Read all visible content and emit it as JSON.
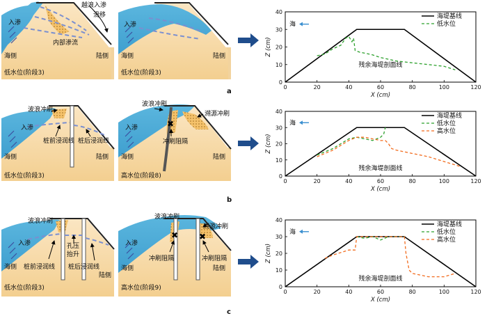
{
  "rows": [
    {
      "id": "a",
      "row_label": "a",
      "left_panel": {
        "overtop_label": "越浪入渗",
        "slide_label": "滑移",
        "infiltration_label": "入渗",
        "internal_seepage_label": "内部渗流",
        "sea_side_label": "海侧",
        "land_side_label": "陆侧",
        "stage_label": "低水位(阶段3)"
      },
      "right_panel": {
        "infiltration_label": "入渗",
        "sea_side_label": "海侧",
        "land_side_label": "陆侧",
        "stage_label": "低水位(阶段3)"
      }
    },
    {
      "id": "b",
      "row_label": "b",
      "left_panel": {
        "wave_scour_label": "波浪冲刷",
        "infiltration_label": "入渗",
        "front_line_label": "桩前浸润线",
        "back_line_label": "桩后浸润线",
        "sea_side_label": "海侧",
        "land_side_label": "陆侧",
        "stage_label": "低水位(阶段3)"
      },
      "right_panel": {
        "wave_scour_label": "波浪冲刷",
        "retro_scour_label": "溯源冲刷",
        "infiltration_label": "入渗",
        "scour_barrier_label": "冲刷阻隔",
        "sea_side_label": "海侧",
        "land_side_label": "陆侧",
        "stage_label": "高水位(阶段8)"
      }
    },
    {
      "id": "c",
      "row_label": "c",
      "left_panel": {
        "wave_scour_label": "波浪冲刷",
        "infiltration_label": "入渗",
        "pore_pressure_label_1": "孔压",
        "pore_pressure_label_2": "抬升",
        "front_line_label": "桩前浸润线",
        "back_line_label": "桩后浸润线",
        "sea_side_label": "海侧",
        "land_side_label": "陆侧",
        "stage_label": "低水位(阶段3)"
      },
      "right_panel": {
        "wave_scour_label": "波浪冲刷",
        "retro_scour_label": "溯源冲刷",
        "infiltration_label": "入渗",
        "scour_barrier_label_1": "冲刷阻隔",
        "scour_barrier_label_2": "冲刷阻隔",
        "sea_side_label": "海侧",
        "land_side_label": "陆侧",
        "stage_label": "高水位(阶段9)"
      }
    }
  ],
  "chart_data": [
    {
      "type": "line",
      "panel": "a",
      "xlabel": "X (cm)",
      "ylabel": "Z (cm)",
      "xlim": [
        0,
        120
      ],
      "ylim": [
        0,
        40
      ],
      "xticks": [
        0,
        20,
        40,
        60,
        80,
        100,
        120
      ],
      "yticks": [
        0,
        10,
        20,
        30,
        40
      ],
      "sea_label": "海",
      "annotation": "残余海堤剖面线",
      "series": [
        {
          "name": "海堤基线",
          "style": "solid",
          "color": "#000000",
          "x": [
            0,
            45,
            75,
            120
          ],
          "y": [
            0,
            30,
            30,
            0
          ]
        },
        {
          "name": "低水位",
          "style": "dashed",
          "color": "#2ca02c",
          "x": [
            20,
            25,
            30,
            35,
            38,
            40,
            42,
            43,
            44,
            47,
            50,
            55,
            60,
            70,
            80,
            90,
            100,
            107
          ],
          "y": [
            15,
            16,
            19,
            21,
            25,
            26,
            23,
            25,
            18,
            17,
            16.5,
            15.5,
            14,
            12,
            11,
            10,
            9,
            7
          ]
        }
      ]
    },
    {
      "type": "line",
      "panel": "b",
      "xlabel": "X (cm)",
      "ylabel": "Z (cm)",
      "xlim": [
        0,
        120
      ],
      "ylim": [
        0,
        40
      ],
      "xticks": [
        0,
        20,
        40,
        60,
        80,
        100,
        120
      ],
      "yticks": [
        0,
        10,
        20,
        30,
        40
      ],
      "sea_label": "海",
      "annotation": "残余海堤剖面线",
      "series": [
        {
          "name": "海堤基线",
          "style": "solid",
          "color": "#000000",
          "x": [
            0,
            45,
            75,
            120
          ],
          "y": [
            0,
            30,
            30,
            0
          ]
        },
        {
          "name": "低水位",
          "style": "dashed",
          "color": "#2ca02c",
          "x": [
            20,
            30,
            40,
            45,
            50,
            55,
            60,
            62,
            63
          ],
          "y": [
            13,
            17,
            23,
            24,
            23,
            22,
            24,
            26,
            30
          ]
        },
        {
          "name": "高水位",
          "style": "dashed",
          "color": "#f26b1d",
          "x": [
            20,
            30,
            40,
            45,
            50,
            55,
            60,
            63,
            65,
            67,
            70,
            80,
            90,
            100,
            110
          ],
          "y": [
            12,
            16,
            22,
            24,
            24,
            23,
            22,
            22,
            20,
            17,
            16,
            14,
            12,
            9,
            6
          ]
        }
      ]
    },
    {
      "type": "line",
      "panel": "c",
      "xlabel": "X (cm)",
      "ylabel": "Z (cm)",
      "xlim": [
        0,
        120
      ],
      "ylim": [
        0,
        40
      ],
      "xticks": [
        0,
        20,
        40,
        60,
        80,
        100,
        120
      ],
      "yticks": [
        0,
        10,
        20,
        30,
        40
      ],
      "sea_label": "海",
      "annotation": "残余海堤剖面线",
      "series": [
        {
          "name": "海堤基线",
          "style": "solid",
          "color": "#000000",
          "x": [
            0,
            45,
            75,
            120
          ],
          "y": [
            0,
            30,
            30,
            0
          ]
        },
        {
          "name": "低水位",
          "style": "dashed",
          "color": "#2ca02c",
          "x": [
            45,
            50,
            55,
            60,
            65,
            70,
            75
          ],
          "y": [
            30,
            29,
            30,
            28,
            30,
            30,
            30
          ]
        },
        {
          "name": "高水位",
          "style": "dashed",
          "color": "#f26b1d",
          "x": [
            25,
            30,
            40,
            44,
            45,
            50,
            60,
            75,
            76,
            78,
            80,
            90,
            100,
            107
          ],
          "y": [
            17,
            19,
            22,
            22,
            30,
            30,
            30,
            30,
            20,
            10,
            8,
            6,
            6,
            8
          ]
        }
      ]
    }
  ]
}
